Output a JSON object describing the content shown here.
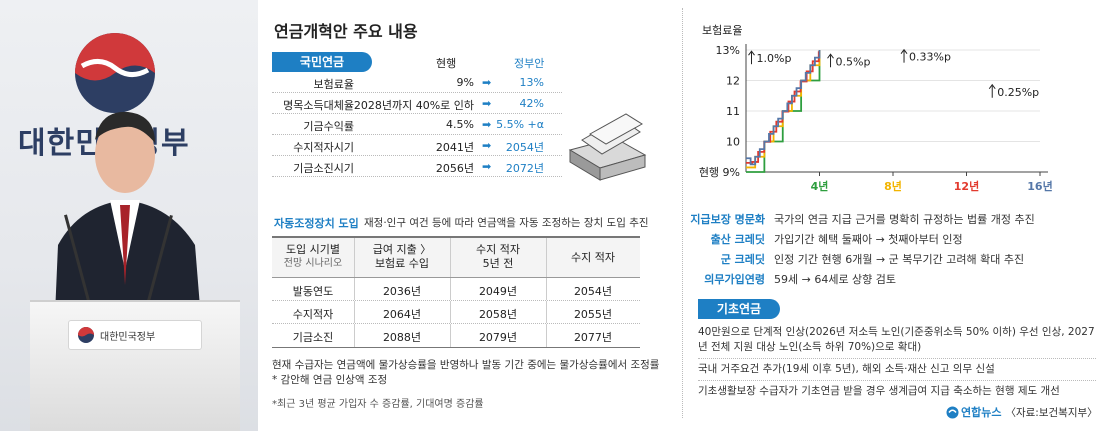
{
  "photo": {
    "emblem_text": "대한민국정부",
    "podium_text": "대한민국정부"
  },
  "title": "연금개혁안 주요 내용",
  "national_pension": {
    "label": "국민연금",
    "header_current": "현행",
    "header_proposal": "정부안",
    "rows": [
      {
        "label": "보험료율",
        "current": "9%",
        "proposal": "13%"
      },
      {
        "label": "명목소득대체율",
        "current": "2028년까지 40%로 인하",
        "proposal": "42%"
      },
      {
        "label": "기금수익률",
        "current": "4.5%",
        "proposal": "5.5% +α"
      },
      {
        "label": "수지적자시기",
        "current": "2041년",
        "proposal": "2054년"
      },
      {
        "label": "기금소진시기",
        "current": "2056년",
        "proposal": "2072년"
      }
    ],
    "arrow": "➡"
  },
  "auto_adjust": {
    "title": "자동조정장치 도입",
    "desc": "재정·인구 여건 등에 따라 연금액을 자동 조정하는 장치 도입 추진",
    "headers": {
      "c0_line1": "도입 시기별",
      "c0_line2": "전망 시나리오",
      "c1_line1": "급여 지출 〉",
      "c1_line2": "보험료 수입",
      "c2_line1": "수지 적자",
      "c2_line2": "5년 전",
      "c3_line1": "수지 적자"
    },
    "rows": [
      {
        "scenario": "발동연도",
        "c1": "2036년",
        "c2": "2049년",
        "c3": "2054년"
      },
      {
        "scenario": "수지적자",
        "c1": "2064년",
        "c2": "2058년",
        "c3": "2055년"
      },
      {
        "scenario": "기금소진",
        "c1": "2088년",
        "c2": "2079년",
        "c3": "2077년"
      }
    ],
    "note1": "현재 수급자는 연금액에 물가상승률을 반영하나 발동 기간 중에는 물가상승률에서 조정률* 감안해 연금 인상액 조정",
    "note2": "*최근 3년 평균 가입자 수 증감률, 기대여명 증감률"
  },
  "chart_data": {
    "type": "line",
    "ylabel": "보험료율",
    "ylim": [
      9,
      13
    ],
    "yticks": [
      "13%",
      "12",
      "11",
      "10",
      "현행 9%"
    ],
    "xticks": [
      "4년",
      "8년",
      "12년",
      "16년"
    ],
    "xlim": [
      0,
      16
    ],
    "series": [
      {
        "color": "#2e9e3e",
        "annotation": "1.0%p",
        "step_years": 1,
        "step_pct": 1.0
      },
      {
        "color": "#f2b400",
        "annotation": "0.5%p",
        "step_years": 0.5,
        "step_pct": 0.5
      },
      {
        "color": "#e23a2e",
        "annotation": "0.33%p",
        "step_years": 0.33,
        "step_pct": 0.33
      },
      {
        "color": "#5577a8",
        "annotation": "0.25%p",
        "step_years": 0.25,
        "step_pct": 0.25
      }
    ]
  },
  "features": [
    {
      "label": "지급보장 명문화",
      "desc": "국가의 연금 지급 근거를 명확히 규정하는 법률 개정 추진"
    },
    {
      "label": "출산 크레딧",
      "desc": "가입기간 혜택 둘째아 → 첫째아부터 인정"
    },
    {
      "label": "군 크레딧",
      "desc": "인정 기간 현행 6개월 → 군 복무기간 고려해 확대 추진"
    },
    {
      "label": "의무가입연령",
      "desc": "59세 → 64세로 상향 검토"
    }
  ],
  "basic_pension": {
    "label": "기초연금",
    "items": [
      "40만원으로 단계적 인상(2026년 저소득 노인(기준중위소득 50% 이하) 우선 인상, 2027년 전체 지원 대상 노인(소득 하위 70%)으로 확대)",
      "국내 거주요건 추가(19세 이후 5년), 해외 소득·재산 신고 의무 신설",
      "기초생활보장 수급자가 기초연금 받을 경우 생계급여 지급 축소하는 현행 제도 개선"
    ]
  },
  "footer": {
    "logo_text": "연합뉴스",
    "source": "〈자료:보건복지부〉"
  }
}
